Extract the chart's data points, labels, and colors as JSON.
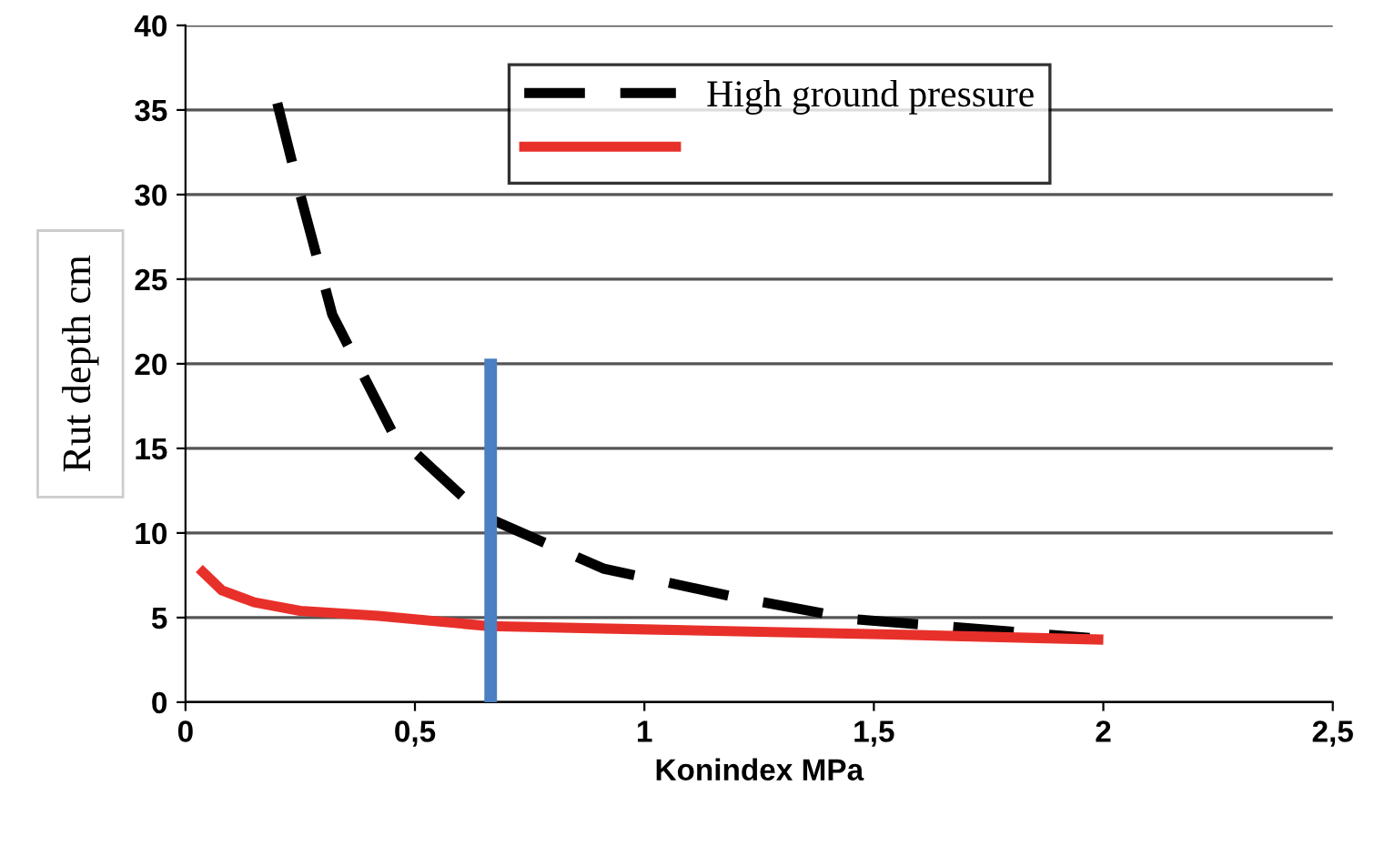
{
  "chart_data": {
    "type": "line",
    "xlabel": "Konindex MPa",
    "ylabel": "Rut depth cm",
    "xlim": [
      0,
      2.5
    ],
    "xticks": [
      {
        "value": 0,
        "label": "0"
      },
      {
        "value": 0.5,
        "label": "0,5"
      },
      {
        "value": 1,
        "label": "1"
      },
      {
        "value": 1.5,
        "label": "1,5"
      },
      {
        "value": 2,
        "label": "2"
      },
      {
        "value": 2.5,
        "label": "2,5"
      }
    ],
    "ylim": [
      0,
      40
    ],
    "yticks": [
      0,
      5,
      10,
      15,
      20,
      25,
      30,
      35,
      40
    ],
    "grid": "y",
    "legend": "top right",
    "marker": "none",
    "series": [
      {
        "name": "High ground pressure",
        "color": "#000000",
        "line_style": "dashed",
        "x": [
          0.2,
          0.25,
          0.32,
          0.45,
          0.65,
          0.91,
          1.2,
          1.46,
          1.97
        ],
        "values": [
          35.4,
          30,
          22.9,
          16,
          11,
          7.9,
          6.2,
          4.9,
          3.8
        ]
      },
      {
        "color": "#e8302a",
        "line_style": "solid",
        "x": [
          0.03,
          0.08,
          0.15,
          0.25,
          0.42,
          0.66,
          1.0,
          1.54,
          2.0
        ],
        "values": [
          7.9,
          6.6,
          5.9,
          5.4,
          5.1,
          4.5,
          4.3,
          4.0,
          3.7
        ]
      },
      {
        "color": "#4a7fc1",
        "line_style": "solid",
        "x": [
          0.665,
          0.665
        ],
        "values": [
          0,
          20.3
        ]
      }
    ]
  }
}
